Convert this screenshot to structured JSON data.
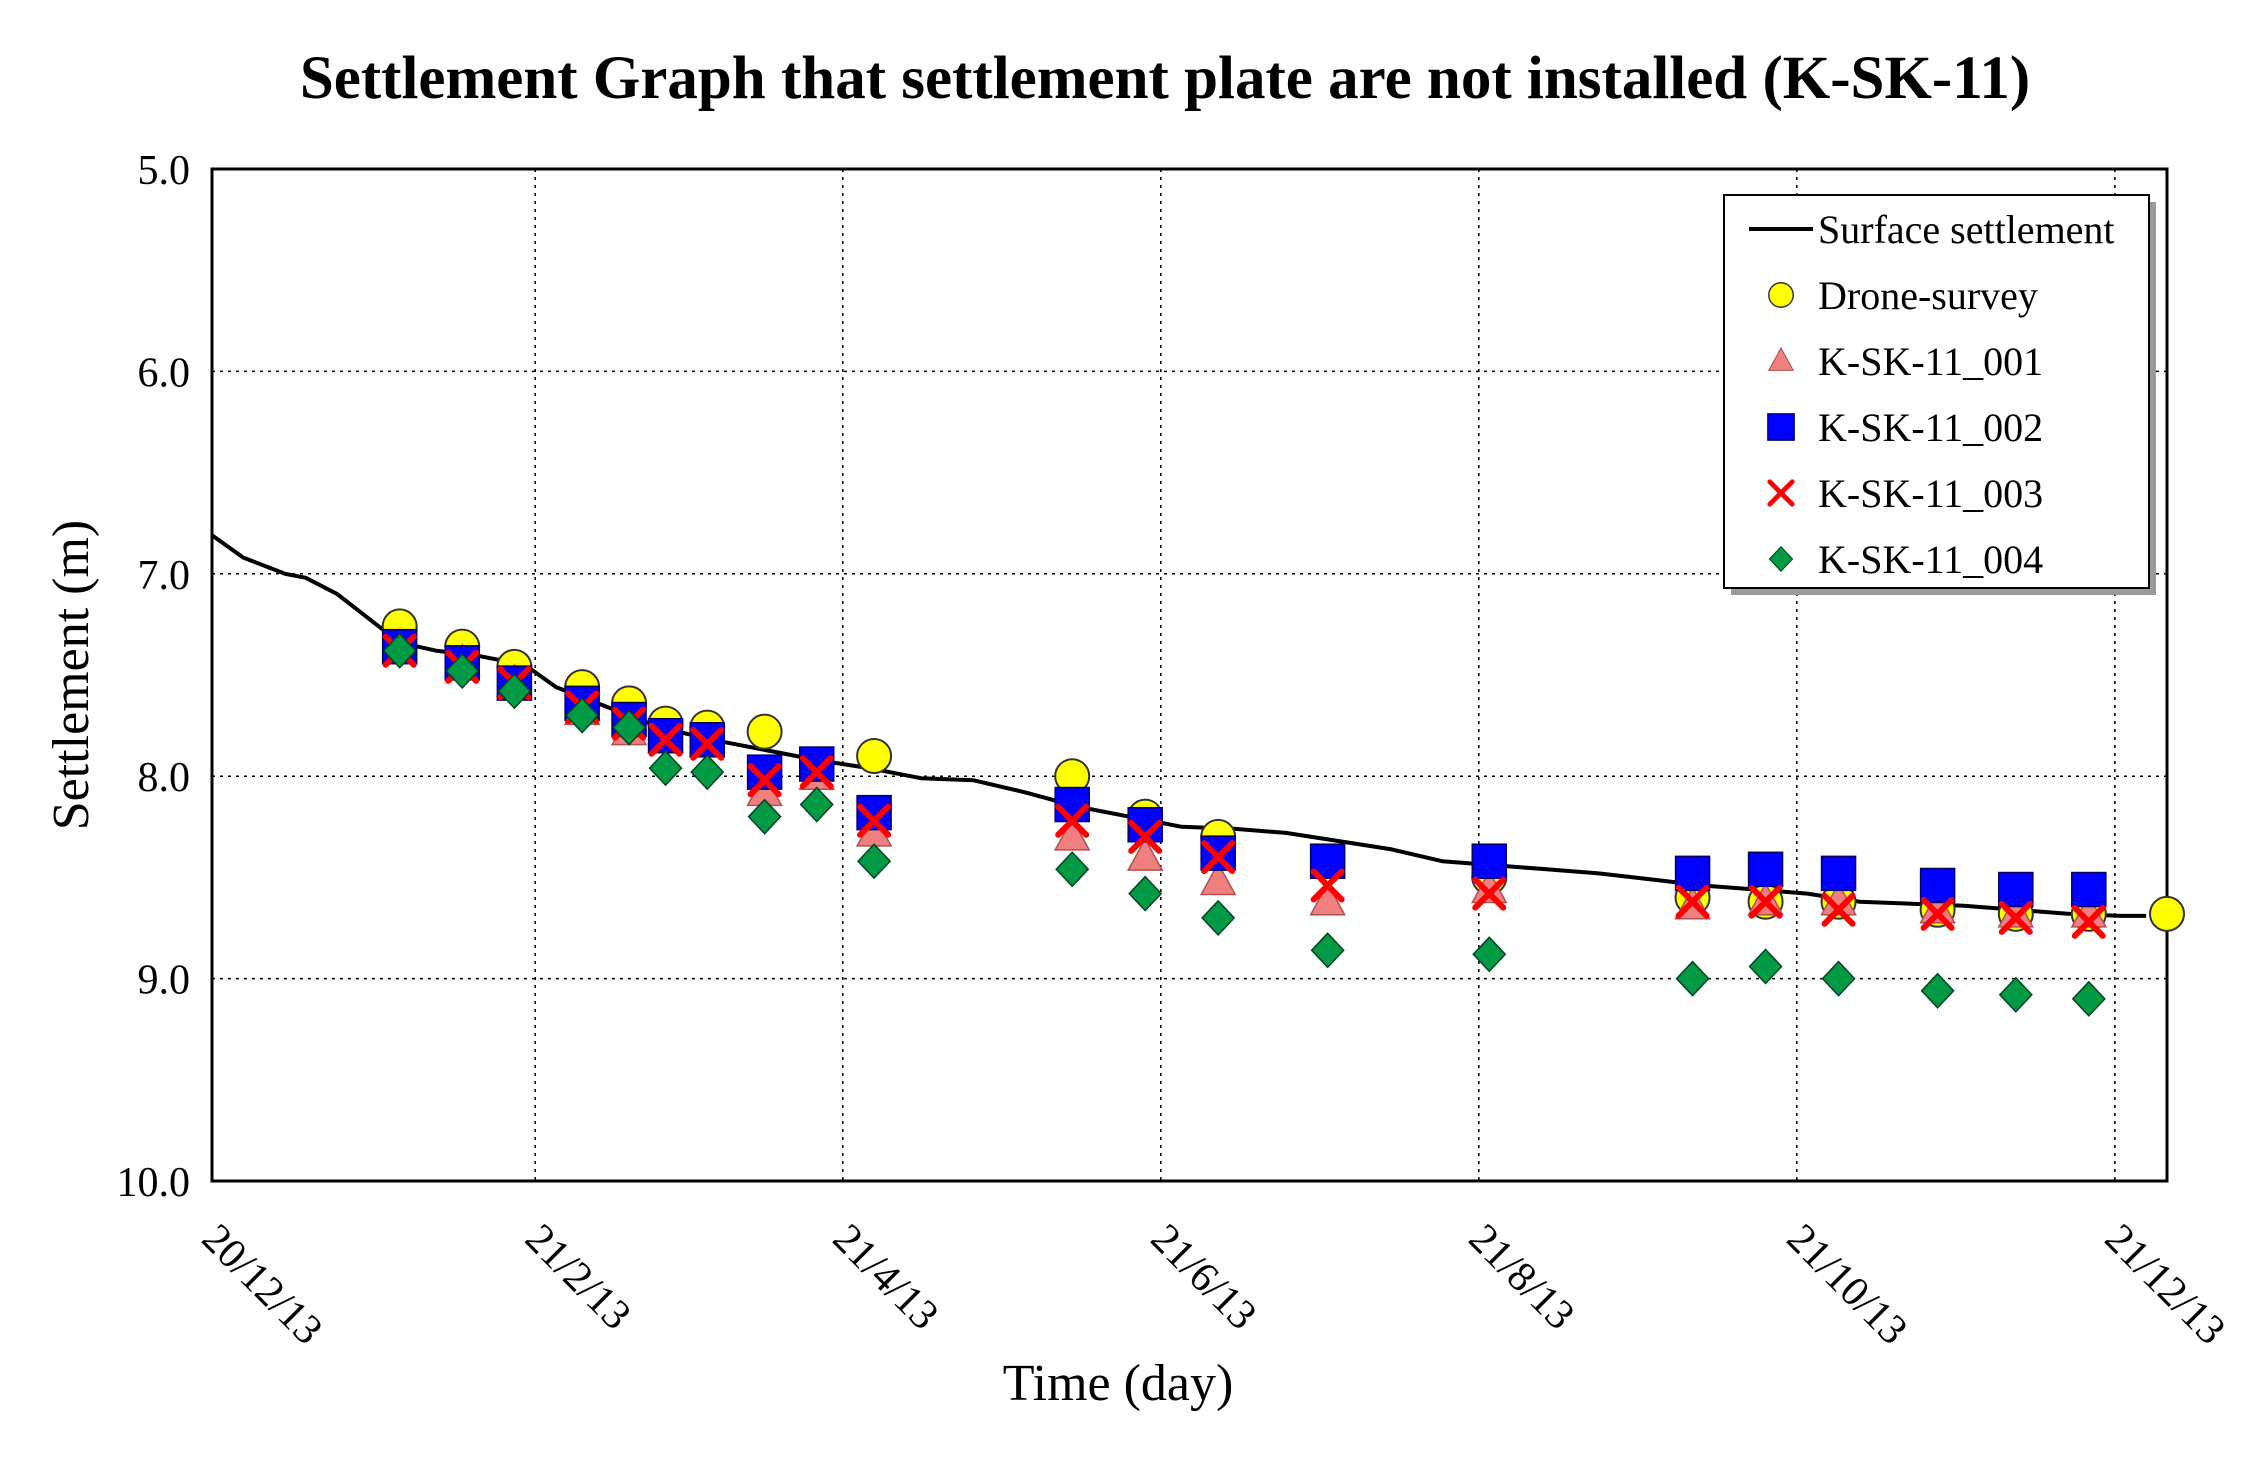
{
  "chart_data": {
    "type": "line",
    "title": "Settlement Graph that settlement plate are not installed (K-SK-11)",
    "xlabel": "Time (day)",
    "ylabel": "Settlement (m)",
    "xlim": [
      0,
      375
    ],
    "ylim": [
      10.0,
      5.0
    ],
    "y_inverted": true,
    "grid": true,
    "legend_position": "top-right",
    "x_ticks": [
      {
        "label": "20/12/13",
        "value": 0
      },
      {
        "label": "21/2/13",
        "value": 62
      },
      {
        "label": "21/4/13",
        "value": 121
      },
      {
        "label": "21/6/13",
        "value": 182
      },
      {
        "label": "21/8/13",
        "value": 243
      },
      {
        "label": "21/10/13",
        "value": 304
      },
      {
        "label": "21/12/13",
        "value": 365
      }
    ],
    "y_ticks": [
      {
        "label": "5.0",
        "value": 5.0
      },
      {
        "label": "6.0",
        "value": 6.0
      },
      {
        "label": "7.0",
        "value": 7.0
      },
      {
        "label": "8.0",
        "value": 8.0
      },
      {
        "label": "9.0",
        "value": 9.0
      },
      {
        "label": "10.0",
        "value": 10.0
      }
    ],
    "series": [
      {
        "name": "Surface settlement",
        "kind": "line",
        "color": "#000000",
        "x": [
          0,
          6,
          14,
          18,
          24,
          30,
          36,
          43,
          50,
          60,
          66,
          76,
          86,
          96,
          106,
          116,
          126,
          136,
          146,
          156,
          166,
          176,
          186,
          196,
          206,
          216,
          226,
          236,
          246,
          256,
          266,
          276,
          286,
          296,
          306,
          316,
          326,
          336,
          346,
          356,
          366,
          371
        ],
        "y": [
          6.81,
          6.92,
          7.0,
          7.02,
          7.1,
          7.22,
          7.34,
          7.38,
          7.4,
          7.45,
          7.56,
          7.66,
          7.76,
          7.82,
          7.87,
          7.92,
          7.96,
          8.01,
          8.02,
          8.08,
          8.15,
          8.2,
          8.25,
          8.26,
          8.28,
          8.32,
          8.36,
          8.42,
          8.44,
          8.46,
          8.48,
          8.51,
          8.54,
          8.56,
          8.58,
          8.62,
          8.63,
          8.64,
          8.66,
          8.68,
          8.69,
          8.69
        ]
      },
      {
        "name": "Drone-survey",
        "kind": "marker",
        "marker": "circle",
        "color": "#FFFF00",
        "x": [
          36,
          48,
          58,
          71,
          80,
          87,
          95,
          106,
          127,
          165,
          179,
          193,
          245,
          284,
          298,
          312,
          331,
          346,
          360,
          375
        ],
        "y": [
          7.26,
          7.36,
          7.46,
          7.56,
          7.64,
          7.74,
          7.76,
          7.78,
          7.9,
          8.0,
          8.2,
          8.3,
          8.5,
          8.6,
          8.62,
          8.62,
          8.66,
          8.68,
          8.68,
          8.68
        ]
      },
      {
        "name": "K-SK-11_001",
        "kind": "marker",
        "marker": "triangle",
        "color": "#F08080",
        "x": [
          36,
          48,
          58,
          71,
          80,
          87,
          95,
          106,
          116,
          127,
          165,
          179,
          193,
          214,
          245,
          284,
          298,
          312,
          331,
          346,
          360
        ],
        "y": [
          7.38,
          7.44,
          7.54,
          7.68,
          7.78,
          7.82,
          7.84,
          8.08,
          8.0,
          8.28,
          8.3,
          8.4,
          8.52,
          8.62,
          8.56,
          8.64,
          8.62,
          8.62,
          8.66,
          8.68,
          8.68
        ]
      },
      {
        "name": "K-SK-11_002",
        "kind": "marker",
        "marker": "square",
        "color": "#0000FF",
        "x": [
          36,
          48,
          58,
          71,
          80,
          87,
          95,
          106,
          116,
          127,
          165,
          179,
          193,
          214,
          245,
          284,
          298,
          312,
          331,
          346,
          360
        ],
        "y": [
          7.36,
          7.44,
          7.54,
          7.64,
          7.72,
          7.8,
          7.82,
          7.98,
          7.94,
          8.18,
          8.14,
          8.24,
          8.38,
          8.42,
          8.42,
          8.48,
          8.46,
          8.48,
          8.54,
          8.56,
          8.56
        ]
      },
      {
        "name": "K-SK-11_003",
        "kind": "marker",
        "marker": "cross",
        "color": "#FF0000",
        "x": [
          36,
          48,
          58,
          71,
          80,
          87,
          95,
          106,
          116,
          127,
          165,
          179,
          193,
          214,
          245,
          284,
          298,
          312,
          331,
          346,
          360
        ],
        "y": [
          7.38,
          7.46,
          7.54,
          7.66,
          7.74,
          7.82,
          7.84,
          8.02,
          7.98,
          8.22,
          8.22,
          8.3,
          8.4,
          8.54,
          8.58,
          8.62,
          8.62,
          8.66,
          8.68,
          8.7,
          8.72
        ]
      },
      {
        "name": "K-SK-11_004",
        "kind": "marker",
        "marker": "diamond",
        "color": "#009944",
        "x": [
          36,
          48,
          58,
          71,
          80,
          87,
          95,
          106,
          116,
          127,
          165,
          179,
          193,
          214,
          245,
          284,
          298,
          312,
          331,
          346,
          360
        ],
        "y": [
          7.38,
          7.48,
          7.58,
          7.7,
          7.76,
          7.96,
          7.98,
          8.2,
          8.14,
          8.42,
          8.46,
          8.58,
          8.7,
          8.86,
          8.88,
          9.0,
          8.94,
          9.0,
          9.06,
          9.08,
          9.1
        ]
      }
    ]
  }
}
